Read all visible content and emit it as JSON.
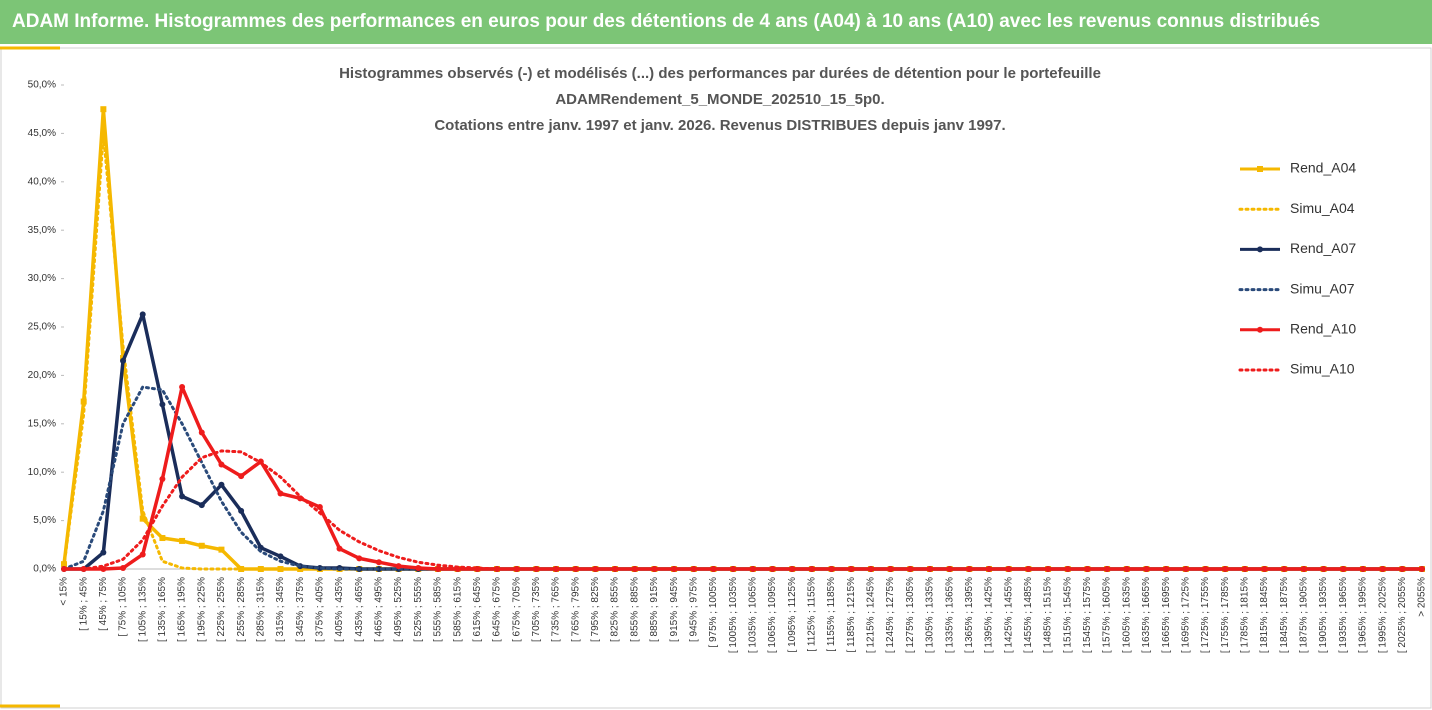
{
  "header": {
    "title": "ADAM Informe. Histogrammes des performances en euros pour des détentions de 4 ans (A04) à 10 ans (A10) avec les revenus connus distribués"
  },
  "chart_data": {
    "type": "line",
    "title": [
      "Histogrammes observés (-) et modélisés (...) des performances par durées de détention pour le portefeuille",
      "ADAMRendement_5_MONDE_202510_15_5p0.",
      "Cotations entre janv. 1997 et janv. 2026. Revenus DISTRIBUES depuis janv 1997."
    ],
    "categories": [
      "< 15%",
      "[ 15% ; 45%",
      "[ 45% ; 75%",
      "[ 75% ; 105%",
      "[ 105% ; 135%",
      "[ 135% ; 165%",
      "[ 165% ; 195%",
      "[ 195% ; 225%",
      "[ 225% ; 255%",
      "[ 255% ; 285%",
      "[ 285% ; 315%",
      "[ 315% ; 345%",
      "[ 345% ; 375%",
      "[ 375% ; 405%",
      "[ 405% ; 435%",
      "[ 435% ; 465%",
      "[ 465% ; 495%",
      "[ 495% ; 525%",
      "[ 525% ; 555%",
      "[ 555% ; 585%",
      "[ 585% ; 615%",
      "[ 615% ; 645%",
      "[ 645% ; 675%",
      "[ 675% ; 705%",
      "[ 705% ; 735%",
      "[ 735% ; 765%",
      "[ 765% ; 795%",
      "[ 795% ; 825%",
      "[ 825% ; 855%",
      "[ 855% ; 885%",
      "[ 885% ; 915%",
      "[ 915% ; 945%",
      "[ 945% ; 975%",
      "[ 975% ; 1005%",
      "[ 1005% ; 1035%",
      "[ 1035% ; 1065%",
      "[ 1065% ; 1095%",
      "[ 1095% ; 1125%",
      "[ 1125% ; 1155%",
      "[ 1155% ; 1185%",
      "[ 1185% ; 1215%",
      "[ 1215% ; 1245%",
      "[ 1245% ; 1275%",
      "[ 1275% ; 1305%",
      "[ 1305% ; 1335%",
      "[ 1335% ; 1365%",
      "[ 1365% ; 1395%",
      "[ 1395% ; 1425%",
      "[ 1425% ; 1455%",
      "[ 1455% ; 1485%",
      "[ 1485% ; 1515%",
      "[ 1515% ; 1545%",
      "[ 1545% ; 1575%",
      "[ 1575% ; 1605%",
      "[ 1605% ; 1635%",
      "[ 1635% ; 1665%",
      "[ 1665% ; 1695%",
      "[ 1695% ; 1725%",
      "[ 1725% ; 1755%",
      "[ 1755% ; 1785%",
      "[ 1785% ; 1815%",
      "[ 1815% ; 1845%",
      "[ 1845% ; 1875%",
      "[ 1875% ; 1905%",
      "[ 1905% ; 1935%",
      "[ 1935% ; 1965%",
      "[ 1965% ; 1995%",
      "[ 1995% ; 2025%",
      "[ 2025% ; 2055%",
      "> 2055%"
    ],
    "ylim": [
      0,
      50
    ],
    "yticks": [
      {
        "value": 0,
        "label": "0,0%"
      },
      {
        "value": 5,
        "label": "5,0%"
      },
      {
        "value": 10,
        "label": "10,0%"
      },
      {
        "value": 15,
        "label": "15,0%"
      },
      {
        "value": 20,
        "label": "20,0%"
      },
      {
        "value": 25,
        "label": "25,0%"
      },
      {
        "value": 30,
        "label": "30,0%"
      },
      {
        "value": 35,
        "label": "35,0%"
      },
      {
        "value": 40,
        "label": "40,0%"
      },
      {
        "value": 45,
        "label": "45,0%"
      },
      {
        "value": 50,
        "label": "50,0%"
      }
    ],
    "grid": false,
    "legend": "right",
    "series": [
      {
        "name": "Rend_A04",
        "color": "#f5b800",
        "style": "solid",
        "marker": "square",
        "values": [
          0.5,
          17.3,
          47.5,
          21.8,
          5.2,
          3.2,
          2.9,
          2.4,
          2.0,
          0,
          0,
          0,
          0,
          0,
          0,
          0,
          0,
          0,
          0,
          0,
          0,
          0,
          0,
          0,
          0,
          0,
          0,
          0,
          0,
          0,
          0,
          0,
          0,
          0,
          0,
          0,
          0,
          0,
          0,
          0,
          0,
          0,
          0,
          0,
          0,
          0,
          0,
          0,
          0,
          0,
          0,
          0,
          0,
          0,
          0,
          0,
          0,
          0,
          0,
          0,
          0,
          0,
          0,
          0,
          0,
          0,
          0,
          0,
          0,
          0
        ]
      },
      {
        "name": "Simu_A04",
        "color": "#f5b800",
        "style": "dotted",
        "marker": "none",
        "values": [
          0.3,
          16,
          45,
          23,
          6,
          0.8,
          0.1,
          0,
          0,
          0,
          0,
          0,
          0,
          0,
          0,
          0,
          0,
          0,
          0,
          0,
          0,
          0,
          0,
          0,
          0,
          0,
          0,
          0,
          0,
          0,
          0,
          0,
          0,
          0,
          0,
          0,
          0,
          0,
          0,
          0,
          0,
          0,
          0,
          0,
          0,
          0,
          0,
          0,
          0,
          0,
          0,
          0,
          0,
          0,
          0,
          0,
          0,
          0,
          0,
          0,
          0,
          0,
          0,
          0,
          0,
          0,
          0,
          0,
          0,
          0
        ]
      },
      {
        "name": "Rend_A07",
        "color": "#1a2d5a",
        "style": "solid",
        "marker": "circle",
        "values": [
          0,
          0,
          1.7,
          21.5,
          26.3,
          17,
          7.5,
          6.6,
          8.7,
          6.0,
          2.2,
          1.3,
          0.3,
          0.1,
          0.1,
          0,
          0,
          0,
          0,
          0,
          0,
          0,
          0,
          0,
          0,
          0,
          0,
          0,
          0,
          0,
          0,
          0,
          0,
          0,
          0,
          0,
          0,
          0,
          0,
          0,
          0,
          0,
          0,
          0,
          0,
          0,
          0,
          0,
          0,
          0,
          0,
          0,
          0,
          0,
          0,
          0,
          0,
          0,
          0,
          0,
          0,
          0,
          0,
          0,
          0,
          0,
          0,
          0,
          0,
          0
        ]
      },
      {
        "name": "Simu_A07",
        "color": "#2a4a7a",
        "style": "dotted",
        "marker": "none",
        "values": [
          0,
          0.8,
          6,
          15,
          18.8,
          18.5,
          15,
          11,
          7,
          3.8,
          1.8,
          0.8,
          0.3,
          0.1,
          0,
          0,
          0,
          0,
          0,
          0,
          0,
          0,
          0,
          0,
          0,
          0,
          0,
          0,
          0,
          0,
          0,
          0,
          0,
          0,
          0,
          0,
          0,
          0,
          0,
          0,
          0,
          0,
          0,
          0,
          0,
          0,
          0,
          0,
          0,
          0,
          0,
          0,
          0,
          0,
          0,
          0,
          0,
          0,
          0,
          0,
          0,
          0,
          0,
          0,
          0,
          0,
          0,
          0,
          0,
          0
        ]
      },
      {
        "name": "Rend_A10",
        "color": "#ee1c1c",
        "style": "solid",
        "marker": "circle",
        "values": [
          0,
          0,
          0,
          0.1,
          1.5,
          9.3,
          18.8,
          14.1,
          10.8,
          9.6,
          11.1,
          7.8,
          7.3,
          6.4,
          2.1,
          1.1,
          0.7,
          0.3,
          0.1,
          0,
          0,
          0,
          0,
          0,
          0,
          0,
          0,
          0,
          0,
          0,
          0,
          0,
          0,
          0,
          0,
          0,
          0,
          0,
          0,
          0,
          0,
          0,
          0,
          0,
          0,
          0,
          0,
          0,
          0,
          0,
          0,
          0,
          0,
          0,
          0,
          0,
          0,
          0,
          0,
          0,
          0,
          0,
          0,
          0,
          0,
          0,
          0,
          0,
          0,
          0
        ]
      },
      {
        "name": "Simu_A10",
        "color": "#ee1c1c",
        "style": "dotted",
        "marker": "none",
        "values": [
          0,
          0,
          0.3,
          1,
          3,
          6.5,
          9.5,
          11.5,
          12.2,
          12.1,
          11,
          9.5,
          7.5,
          5.8,
          4,
          2.8,
          1.9,
          1.2,
          0.7,
          0.4,
          0.2,
          0.1,
          0,
          0,
          0,
          0,
          0,
          0,
          0,
          0,
          0,
          0,
          0,
          0,
          0,
          0,
          0,
          0,
          0,
          0,
          0,
          0,
          0,
          0,
          0,
          0,
          0,
          0,
          0,
          0,
          0,
          0,
          0,
          0,
          0,
          0,
          0,
          0,
          0,
          0,
          0,
          0,
          0,
          0,
          0,
          0,
          0,
          0,
          0,
          0
        ]
      }
    ]
  }
}
